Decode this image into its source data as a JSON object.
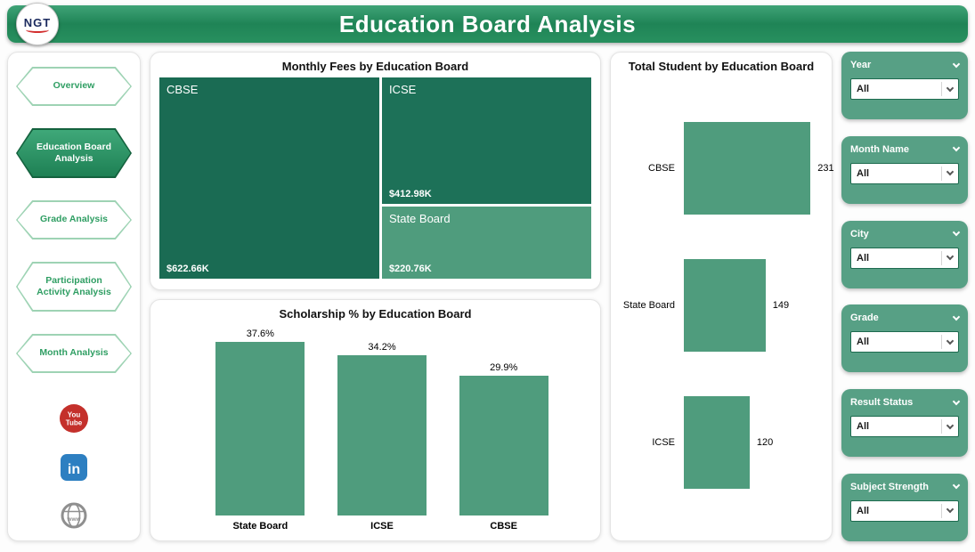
{
  "header": {
    "title": "Education Board Analysis",
    "logo_text": "NGT"
  },
  "sidebar": {
    "items": [
      {
        "label": "Overview",
        "active": false
      },
      {
        "label": "Education Board Analysis",
        "active": true
      },
      {
        "label": "Grade Analysis",
        "active": false
      },
      {
        "label": "Participation Activity Analysis",
        "active": false
      },
      {
        "label": "Month Analysis",
        "active": false
      }
    ],
    "social_icons": [
      "youtube-icon",
      "linkedin-icon",
      "globe-icon"
    ]
  },
  "chart_data": [
    {
      "type": "treemap",
      "title": "Monthly Fees by Education Board",
      "items": [
        {
          "label": "CBSE",
          "value": 622.66,
          "value_label": "$622.66K",
          "color": "#1a6b53"
        },
        {
          "label": "ICSE",
          "value": 412.98,
          "value_label": "$412.98K",
          "color": "#1d7158"
        },
        {
          "label": "State Board",
          "value": 220.76,
          "value_label": "$220.76K",
          "color": "#4f9c7d"
        }
      ]
    },
    {
      "type": "bar",
      "title": "Scholarship % by Education Board",
      "categories": [
        "State Board",
        "ICSE",
        "CBSE"
      ],
      "values": [
        37.6,
        34.2,
        29.9
      ],
      "value_labels": [
        "37.6%",
        "34.2%",
        "29.9%"
      ],
      "ylim": [
        0,
        40
      ],
      "bar_color": "#4f9c7d",
      "grid": false,
      "legend": false
    },
    {
      "type": "bar",
      "orientation": "horizontal",
      "title": "Total Student by Education Board",
      "categories": [
        "CBSE",
        "State Board",
        "ICSE"
      ],
      "values": [
        231,
        149,
        120
      ],
      "xlim": [
        0,
        250
      ],
      "bar_color": "#4f9c7d",
      "grid": false,
      "legend": false
    }
  ],
  "filters": [
    {
      "label": "Year",
      "value": "All"
    },
    {
      "label": "Month Name",
      "value": "All"
    },
    {
      "label": "City",
      "value": "All"
    },
    {
      "label": "Grade",
      "value": "All"
    },
    {
      "label": "Result Status",
      "value": "All"
    },
    {
      "label": "Subject Strength",
      "value": "All"
    }
  ],
  "colors": {
    "header_green": "#1f8456",
    "treemap_dark_green": "#1a6b53",
    "bar_green": "#4f9c7d",
    "slicer_green": "#57a085",
    "nav_text_green": "#2f9e63",
    "youtube_red": "#c4302b",
    "linkedin_blue": "#2d7fc1"
  }
}
